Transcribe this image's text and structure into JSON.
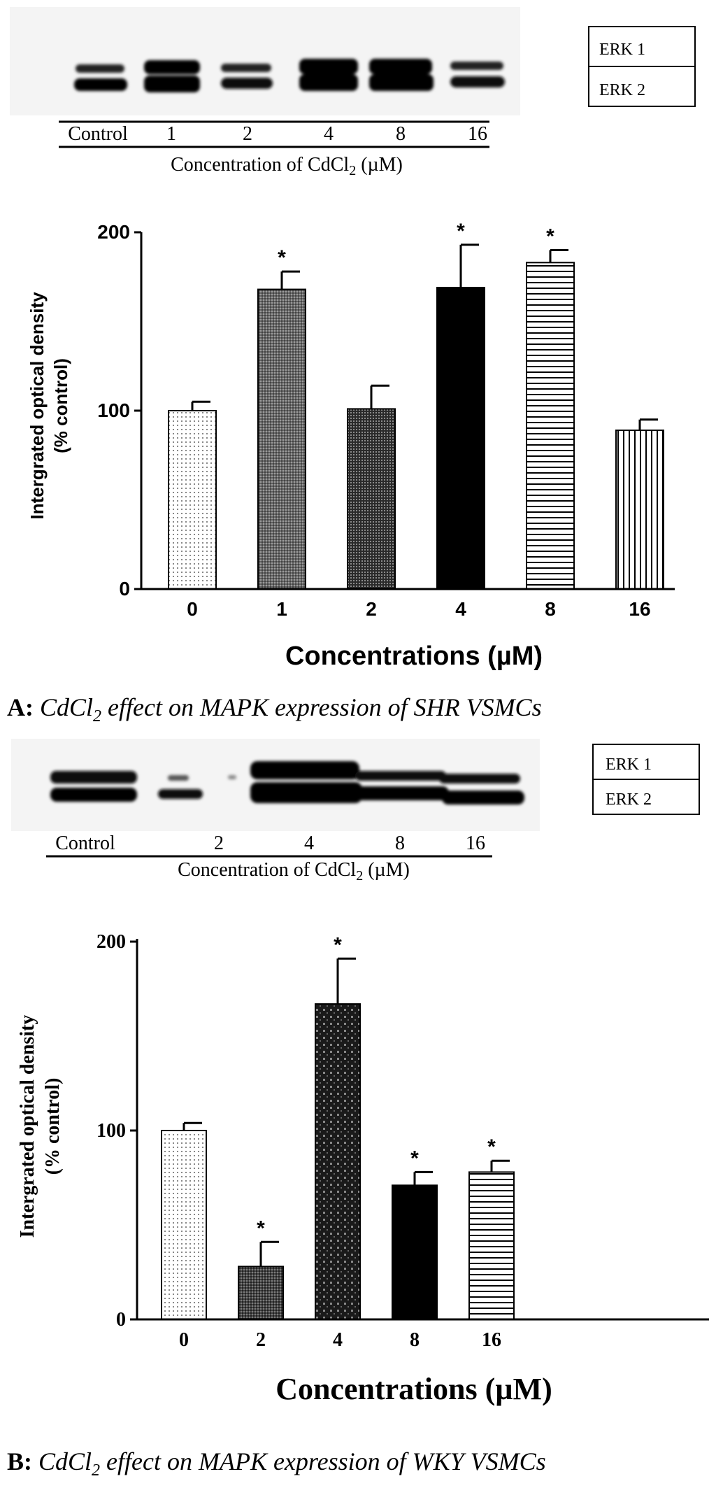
{
  "panels": [
    {
      "id": "A",
      "blot": {
        "lane_labels": [
          "Control",
          "1",
          "2",
          "4",
          "8",
          "16"
        ],
        "xlabel_prefix": "Concentration of CdCl",
        "xlabel_sub": "2",
        "xlabel_suffix": " (µM)",
        "legend": [
          "ERK 1",
          "ERK 2"
        ]
      },
      "caption": {
        "tag": "A:",
        "text_a": " CdCl",
        "sub": "2",
        "text_b": " effect on MAPK expression of SHR VSMCs"
      }
    },
    {
      "id": "B",
      "blot": {
        "lane_labels": [
          "Control",
          "2",
          "4",
          "8",
          "16"
        ],
        "xlabel_prefix": "Concentration of CdCl",
        "xlabel_sub": "2",
        "xlabel_suffix": " (µM)",
        "legend": [
          "ERK 1",
          "ERK 2"
        ]
      },
      "caption": {
        "tag": "B:",
        "text_a": " CdCl",
        "sub": "2",
        "text_b": " effect on MAPK expression of WKY VSMCs"
      }
    }
  ],
  "chart_data": [
    {
      "type": "bar",
      "categories": [
        "0",
        "1",
        "2",
        "4",
        "8",
        "16"
      ],
      "values": [
        100,
        168,
        101,
        169,
        183,
        89
      ],
      "errors": [
        5,
        10,
        13,
        24,
        7,
        6
      ],
      "significant": [
        false,
        true,
        false,
        true,
        true,
        false
      ],
      "significance_marker": "*",
      "patterns": [
        "dots",
        "fine-crosshatch",
        "dense-dots",
        "solid",
        "horizontal",
        "vertical"
      ],
      "xlabel": "Concentrations (µM)",
      "ylabel_line1": "Intergrated optical density",
      "ylabel_line2": "(% control)",
      "yticks": [
        0,
        100,
        200
      ],
      "ylim": [
        0,
        200
      ]
    },
    {
      "type": "bar",
      "categories": [
        "0",
        "2",
        "4",
        "8",
        "16"
      ],
      "values": [
        100,
        28,
        167,
        71,
        78
      ],
      "errors": [
        4,
        13,
        24,
        7,
        6
      ],
      "significant": [
        false,
        true,
        true,
        true,
        true
      ],
      "significance_marker": "*",
      "patterns": [
        "dots",
        "crosshatch",
        "sparse-dots",
        "solid",
        "horizontal"
      ],
      "xlabel": "Concentrations (µM)",
      "ylabel_line1": "Intergrated optical density",
      "ylabel_line2": "(% control)",
      "yticks": [
        0,
        100,
        200
      ],
      "ylim": [
        0,
        200
      ]
    }
  ]
}
